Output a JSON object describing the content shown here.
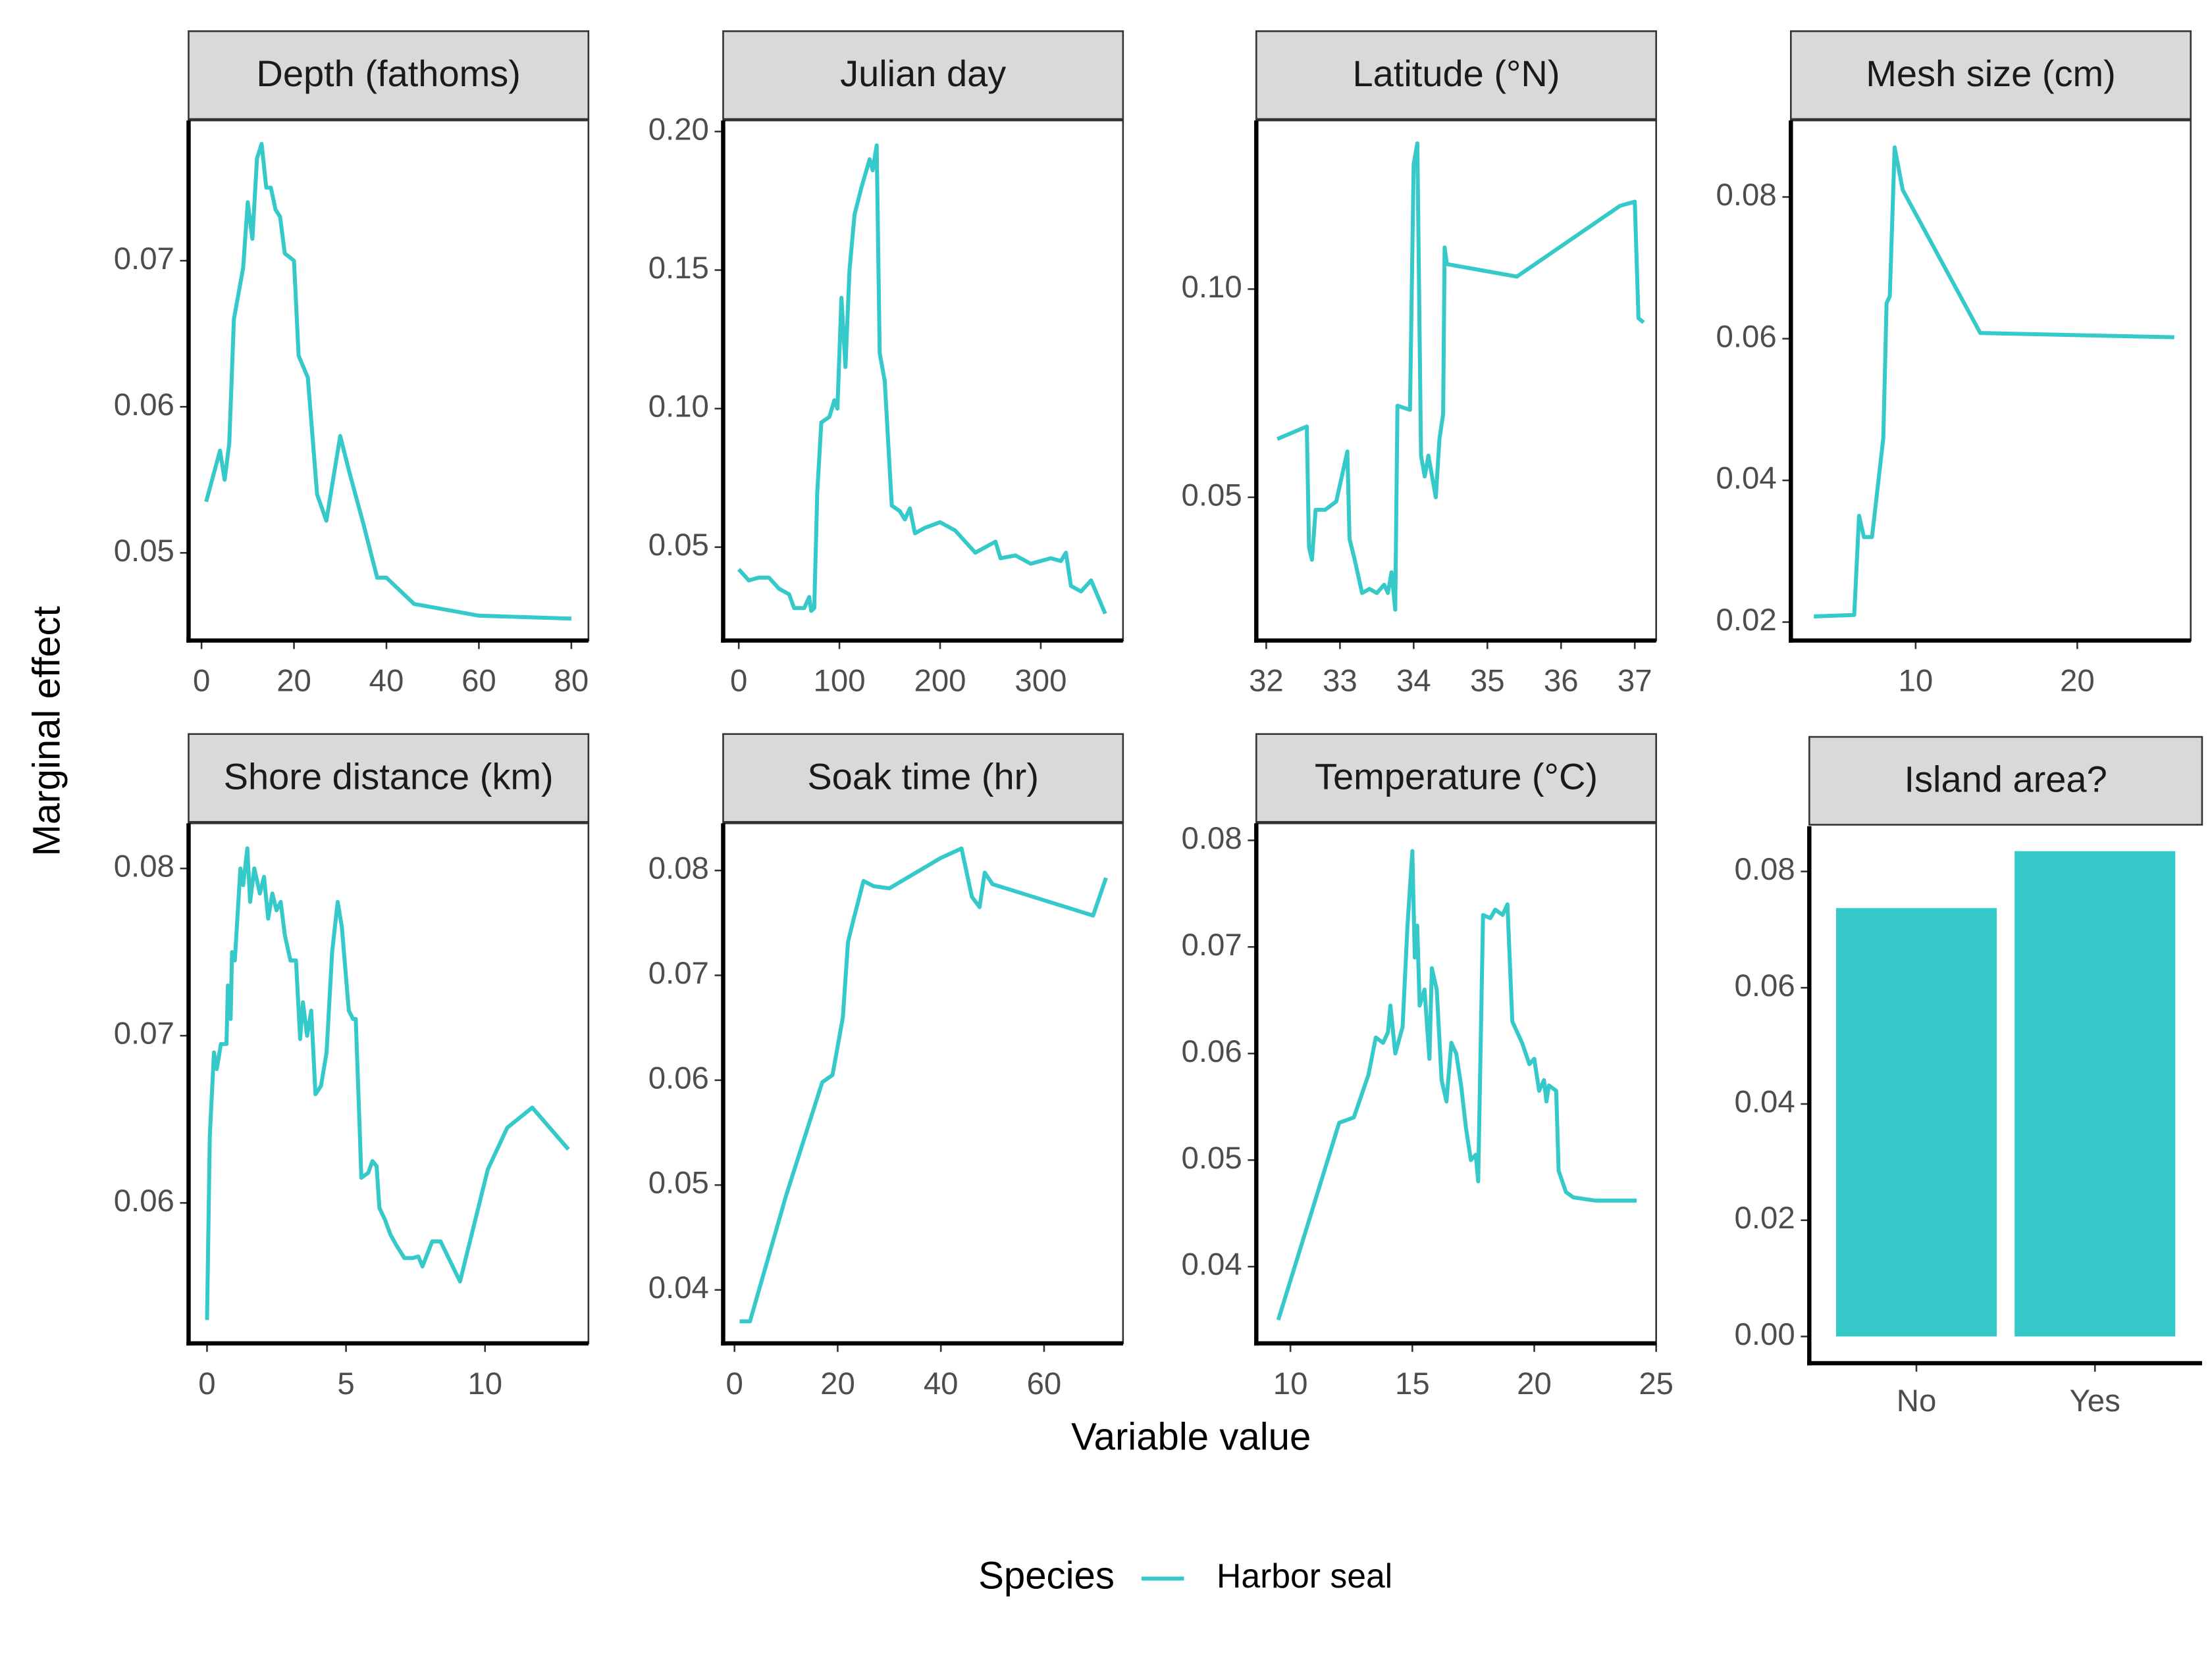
{
  "figure": {
    "ylabel": "Marginal effect",
    "xlabel": "Variable value",
    "legend_title": "Species"
  },
  "chart_data": [
    {
      "type": "line",
      "title": "Depth (fathoms)",
      "x": [
        1,
        4,
        5,
        6,
        7,
        9,
        10,
        11,
        12,
        13,
        14,
        15,
        16,
        17,
        18,
        20,
        21,
        23,
        25,
        27,
        30,
        32,
        35,
        38,
        40,
        46,
        60,
        80
      ],
      "series": [
        {
          "name": "Harbor seal",
          "color": "#35c9c9",
          "values": [
            0.0535,
            0.057,
            0.055,
            0.0575,
            0.066,
            0.0695,
            0.074,
            0.0715,
            0.077,
            0.078,
            0.075,
            0.075,
            0.0735,
            0.073,
            0.0705,
            0.07,
            0.0635,
            0.062,
            0.054,
            0.0522,
            0.058,
            0.0555,
            0.052,
            0.0483,
            0.0483,
            0.0465,
            0.0457,
            0.0455
          ]
        }
      ],
      "xlim": [
        -2.8,
        83.7
      ],
      "ylim": [
        0.044,
        0.0796
      ],
      "xticks": [
        0,
        20,
        40,
        60,
        80
      ],
      "yticks": [
        0.05,
        0.06,
        0.07
      ]
    },
    {
      "type": "line",
      "title": "Julian day",
      "x": [
        0,
        10,
        20,
        30,
        40,
        50,
        55,
        65,
        70,
        72,
        75,
        78,
        82,
        90,
        95,
        98,
        102,
        106,
        110,
        115,
        122,
        130,
        133,
        137,
        140,
        145,
        152,
        160,
        165,
        170,
        175,
        185,
        200,
        215,
        225,
        235,
        245,
        255,
        260,
        275,
        290,
        300,
        310,
        320,
        325,
        330,
        340,
        350,
        364
      ],
      "series": [
        {
          "name": "Harbor seal",
          "color": "#35c9c9",
          "values": [
            0.042,
            0.038,
            0.039,
            0.039,
            0.035,
            0.033,
            0.028,
            0.028,
            0.032,
            0.027,
            0.028,
            0.07,
            0.095,
            0.097,
            0.103,
            0.1,
            0.14,
            0.115,
            0.15,
            0.17,
            0.18,
            0.19,
            0.186,
            0.195,
            0.12,
            0.11,
            0.065,
            0.063,
            0.06,
            0.064,
            0.055,
            0.057,
            0.059,
            0.056,
            0.052,
            0.048,
            0.05,
            0.052,
            0.046,
            0.047,
            0.044,
            0.045,
            0.046,
            0.045,
            0.048,
            0.036,
            0.034,
            0.038,
            0.026
          ]
        }
      ],
      "xlim": [
        -15.5,
        381.7
      ],
      "ylim": [
        0.0163,
        0.204
      ],
      "xticks": [
        0,
        100,
        200,
        300
      ],
      "yticks": [
        0.05,
        {
          "value": 0.1,
          "label": "0.10"
        },
        0.15,
        {
          "value": 0.2,
          "label": "0.20"
        }
      ]
    },
    {
      "type": "line",
      "title": "Latitude (°N)",
      "x": [
        32.15,
        32.55,
        32.58,
        32.62,
        32.67,
        32.8,
        32.95,
        33.1,
        33.13,
        33.2,
        33.3,
        33.4,
        33.5,
        33.6,
        33.65,
        33.7,
        33.75,
        33.78,
        33.95,
        34.0,
        34.05,
        34.1,
        34.15,
        34.2,
        34.3,
        34.35,
        34.4,
        34.42,
        34.45,
        35.4,
        36.8,
        37.0,
        37.05,
        37.12
      ],
      "series": [
        {
          "name": "Harbor seal",
          "color": "#35c9c9",
          "values": [
            0.064,
            0.067,
            0.038,
            0.035,
            0.047,
            0.047,
            0.049,
            0.061,
            0.04,
            0.035,
            0.027,
            0.028,
            0.027,
            0.029,
            0.027,
            0.032,
            0.023,
            0.072,
            0.071,
            0.13,
            0.135,
            0.06,
            0.055,
            0.06,
            0.05,
            0.064,
            0.07,
            0.11,
            0.106,
            0.103,
            0.12,
            0.121,
            0.093,
            0.092
          ]
        }
      ],
      "xlim": [
        31.865,
        37.29
      ],
      "ylim": [
        0.0156,
        0.1405
      ],
      "xticks": [
        32,
        33,
        34,
        35,
        36,
        37
      ],
      "yticks": [
        0.05,
        {
          "value": 0.1,
          "label": "0.10"
        }
      ]
    },
    {
      "type": "line",
      "title": "Mesh size (cm)",
      "x": [
        3.7,
        6.2,
        6.5,
        6.8,
        7.3,
        8.0,
        8.2,
        8.4,
        8.7,
        9.2,
        14,
        26
      ],
      "series": [
        {
          "name": "Harbor seal",
          "color": "#35c9c9",
          "values": [
            0.0208,
            0.021,
            0.035,
            0.032,
            0.032,
            0.046,
            0.065,
            0.066,
            0.087,
            0.081,
            0.0608,
            0.0602
          ]
        }
      ],
      "xlim": [
        2.28,
        27.02
      ],
      "ylim": [
        0.0174,
        0.0908
      ],
      "xticks": [
        10,
        20
      ],
      "yticks": [
        0.02,
        0.04,
        0.06,
        0.08
      ]
    },
    {
      "type": "line",
      "title": "Shore distance (km)",
      "x": [
        0,
        0.1,
        0.25,
        0.35,
        0.5,
        0.7,
        0.75,
        0.85,
        0.9,
        1.0,
        1.2,
        1.3,
        1.45,
        1.55,
        1.7,
        1.9,
        2.05,
        2.2,
        2.35,
        2.5,
        2.65,
        2.8,
        3.0,
        3.2,
        3.35,
        3.45,
        3.6,
        3.75,
        3.9,
        4.1,
        4.3,
        4.5,
        4.7,
        4.85,
        5.1,
        5.25,
        5.35,
        5.5,
        5.55,
        5.8,
        5.95,
        6.1,
        6.2,
        6.4,
        6.6,
        6.8,
        7.1,
        7.4,
        7.6,
        7.75,
        8.1,
        8.4,
        9.1,
        10.1,
        10.8,
        11.7,
        13.0
      ],
      "series": [
        {
          "name": "Harbor seal",
          "color": "#35c9c9",
          "values": [
            0.053,
            0.064,
            0.069,
            0.068,
            0.0695,
            0.0695,
            0.073,
            0.071,
            0.075,
            0.0745,
            0.08,
            0.079,
            0.0812,
            0.078,
            0.08,
            0.0785,
            0.0795,
            0.077,
            0.0785,
            0.0775,
            0.078,
            0.076,
            0.0745,
            0.0745,
            0.0698,
            0.072,
            0.07,
            0.0715,
            0.0665,
            0.067,
            0.069,
            0.075,
            0.078,
            0.0765,
            0.0715,
            0.071,
            0.071,
            0.064,
            0.0615,
            0.0618,
            0.0625,
            0.0622,
            0.0597,
            0.059,
            0.0581,
            0.0575,
            0.0567,
            0.0567,
            0.0568,
            0.0562,
            0.0577,
            0.0577,
            0.0553,
            0.062,
            0.0645,
            0.0657,
            0.0632
          ]
        }
      ],
      "xlim": [
        -0.663,
        13.72
      ],
      "ylim": [
        0.0516,
        0.0827
      ],
      "xticks": [
        0,
        5,
        10
      ],
      "yticks": [
        0.06,
        0.07,
        0.08
      ]
    },
    {
      "type": "line",
      "title": "Soak time (hr)",
      "x": [
        1,
        3,
        10,
        17,
        19,
        21,
        22,
        23,
        25,
        27,
        30,
        40,
        44,
        46,
        47.5,
        48.5,
        50,
        69.5,
        72
      ],
      "series": [
        {
          "name": "Harbor seal",
          "color": "#35c9c9",
          "values": [
            0.037,
            0.037,
            0.049,
            0.0598,
            0.0605,
            0.066,
            0.0732,
            0.0752,
            0.079,
            0.0785,
            0.0783,
            0.0812,
            0.0821,
            0.0775,
            0.0765,
            0.0798,
            0.0787,
            0.0757,
            0.0793
          ]
        }
      ],
      "xlim": [
        -2.2,
        75.3
      ],
      "ylim": [
        0.0349,
        0.0845
      ],
      "xticks": [
        0,
        20,
        40,
        60
      ],
      "yticks": [
        0.04,
        0.05,
        0.06,
        0.07,
        0.08
      ]
    },
    {
      "type": "line",
      "title": "Temperature (°C)",
      "x": [
        9.5,
        12,
        12.6,
        13.2,
        13.5,
        13.8,
        14.0,
        14.1,
        14.3,
        14.6,
        14.8,
        15.0,
        15.1,
        15.2,
        15.3,
        15.5,
        15.7,
        15.8,
        16.0,
        16.2,
        16.4,
        16.6,
        16.8,
        17.0,
        17.2,
        17.4,
        17.6,
        17.7,
        17.9,
        18.2,
        18.4,
        18.7,
        18.9,
        19.1,
        19.5,
        19.8,
        20.0,
        20.2,
        20.4,
        20.5,
        20.6,
        20.9,
        21.0,
        21.3,
        21.6,
        22.5,
        24.2
      ],
      "series": [
        {
          "name": "Harbor seal",
          "color": "#35c9c9",
          "values": [
            0.035,
            0.0535,
            0.054,
            0.058,
            0.0615,
            0.061,
            0.062,
            0.0645,
            0.06,
            0.0625,
            0.072,
            0.079,
            0.069,
            0.072,
            0.0645,
            0.066,
            0.0595,
            0.068,
            0.066,
            0.0575,
            0.0555,
            0.061,
            0.06,
            0.057,
            0.053,
            0.05,
            0.0505,
            0.048,
            0.073,
            0.0727,
            0.0735,
            0.073,
            0.074,
            0.063,
            0.061,
            0.059,
            0.0595,
            0.0565,
            0.0575,
            0.0555,
            0.057,
            0.0565,
            0.049,
            0.047,
            0.0465,
            0.0462,
            0.0462
          ]
        }
      ],
      "xlim": [
        8.6,
        25
      ],
      "ylim": [
        0.0328,
        0.0816
      ],
      "xticks": [
        10,
        15,
        20,
        25
      ],
      "yticks": [
        0.04,
        0.05,
        0.06,
        0.07,
        0.08
      ]
    },
    {
      "type": "bar",
      "title": "Island area?",
      "categories": [
        "No",
        "Yes"
      ],
      "values": [
        0.0737,
        0.0835
      ],
      "color": "#35c9c9",
      "ylim": [
        -0.0046,
        0.0878
      ],
      "yticks": [
        {
          "value": 0,
          "label": "0.00"
        },
        0.02,
        0.04,
        0.06,
        0.08
      ]
    }
  ]
}
